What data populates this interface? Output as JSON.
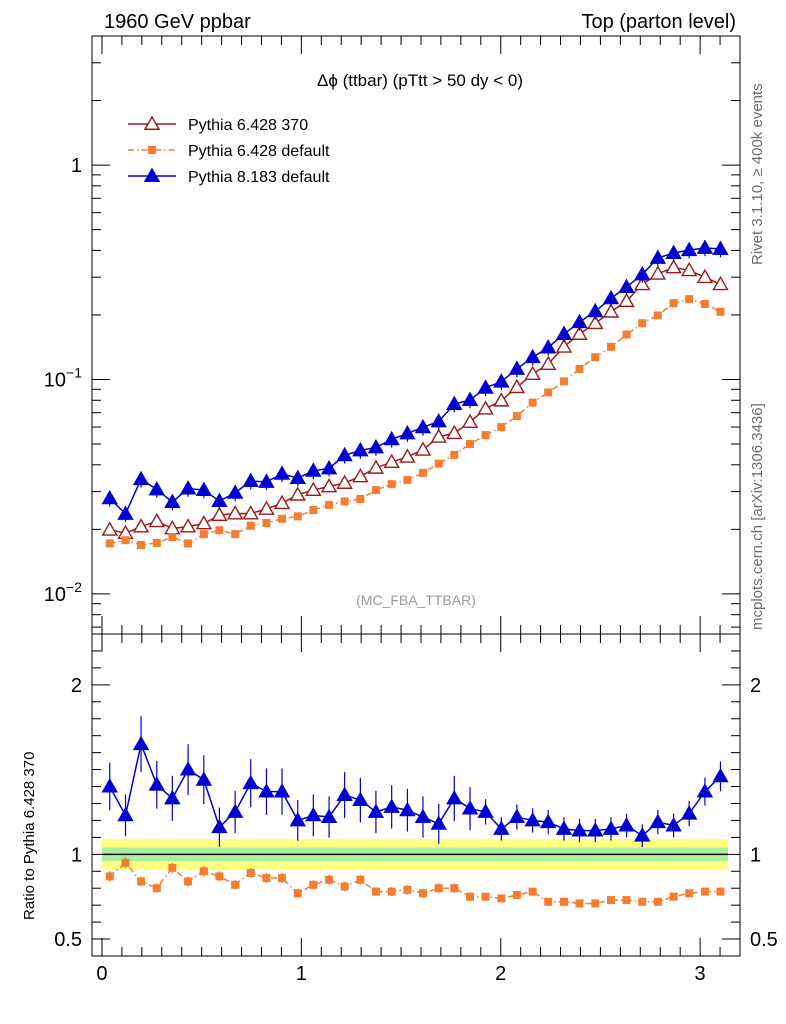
{
  "header": {
    "left": "1960 GeV ppbar",
    "right": "Top (parton level)"
  },
  "side_labels": {
    "rivet": "Rivet 3.1.10, ≥ 400k events",
    "mcplots": "mcplots.cern.ch [arXiv:1306.3436]"
  },
  "chart_data": [
    {
      "type": "line",
      "title": "Δϕ (ttbar) (pTtt > 50 dy < 0)",
      "watermark": "(MC_FBA_TTBAR)",
      "xlabel": "",
      "ylabel": "",
      "yscale": "log",
      "xlim": [
        -0.05,
        3.2
      ],
      "ylim": [
        0.0065,
        4.0
      ],
      "y_ticks": [
        {
          "value": 1,
          "label": "1"
        },
        {
          "value": 0.1,
          "label": "10",
          "exp": "−1"
        },
        {
          "value": 0.01,
          "label": "10",
          "exp": "−2"
        }
      ],
      "legend_position": "top-left",
      "grid": false,
      "x": [
        0.039,
        0.118,
        0.196,
        0.275,
        0.353,
        0.432,
        0.511,
        0.589,
        0.668,
        0.746,
        0.825,
        0.903,
        0.982,
        1.06,
        1.139,
        1.217,
        1.296,
        1.374,
        1.453,
        1.532,
        1.61,
        1.689,
        1.767,
        1.846,
        1.924,
        2.003,
        2.081,
        2.16,
        2.238,
        2.317,
        2.395,
        2.474,
        2.553,
        2.631,
        2.71,
        2.788,
        2.867,
        2.945,
        3.024,
        3.102
      ],
      "series": [
        {
          "name": "Pythia 6.428 370",
          "color": "#9b1b1b",
          "marker": "open-triangle",
          "line": "solid",
          "values": [
            0.0199,
            0.0192,
            0.0206,
            0.0218,
            0.0202,
            0.0206,
            0.0213,
            0.0233,
            0.0237,
            0.0237,
            0.0249,
            0.0265,
            0.029,
            0.0305,
            0.0317,
            0.0329,
            0.0353,
            0.0387,
            0.0412,
            0.0436,
            0.047,
            0.054,
            0.0562,
            0.0633,
            0.0731,
            0.0797,
            0.092,
            0.106,
            0.118,
            0.142,
            0.163,
            0.183,
            0.207,
            0.232,
            0.278,
            0.311,
            0.333,
            0.323,
            0.3,
            0.278
          ]
        },
        {
          "name": "Pythia 6.428 default",
          "color": "#f47d30",
          "marker": "filled-square",
          "line": "dash-dot",
          "values": [
            0.0172,
            0.0178,
            0.0169,
            0.0173,
            0.0184,
            0.0172,
            0.019,
            0.0198,
            0.019,
            0.0208,
            0.0214,
            0.0224,
            0.023,
            0.0246,
            0.026,
            0.027,
            0.0277,
            0.0305,
            0.0325,
            0.034,
            0.0367,
            0.0405,
            0.0445,
            0.05,
            0.055,
            0.06,
            0.0675,
            0.078,
            0.087,
            0.098,
            0.112,
            0.127,
            0.142,
            0.162,
            0.183,
            0.199,
            0.227,
            0.237,
            0.225,
            0.207
          ]
        },
        {
          "name": "Pythia 8.183 default",
          "color": "#0000d0",
          "marker": "filled-triangle",
          "line": "solid",
          "values": [
            0.0279,
            0.0236,
            0.0343,
            0.0307,
            0.0268,
            0.031,
            0.0305,
            0.0271,
            0.0296,
            0.0336,
            0.0333,
            0.0363,
            0.0347,
            0.0375,
            0.0385,
            0.0443,
            0.0467,
            0.0482,
            0.0526,
            0.056,
            0.0598,
            0.0637,
            0.0768,
            0.0802,
            0.0915,
            0.0977,
            0.112,
            0.127,
            0.141,
            0.163,
            0.185,
            0.208,
            0.239,
            0.27,
            0.309,
            0.369,
            0.389,
            0.401,
            0.411,
            0.406
          ]
        }
      ]
    },
    {
      "type": "line",
      "ylabel": "Ratio to Pythia 6.428 370",
      "xlabel": "",
      "xlim": [
        -0.05,
        3.2
      ],
      "ylim": [
        0.4,
        2.3
      ],
      "y_ticks": [
        {
          "value": 2,
          "label": "2"
        },
        {
          "value": 1,
          "label": "1"
        },
        {
          "value": 0.5,
          "label": "0.5"
        }
      ],
      "x_ticks": [
        {
          "value": 0,
          "label": "0"
        },
        {
          "value": 1,
          "label": "1"
        },
        {
          "value": 2,
          "label": "2"
        },
        {
          "value": 3,
          "label": "3"
        }
      ],
      "reference_band_color": "#ffff80",
      "reference_band_inner_color": "#a8f0a0",
      "series": [
        {
          "name": "Pythia 6.428 default",
          "color": "#f47d30",
          "values": [
            0.87,
            0.95,
            0.84,
            0.8,
            0.92,
            0.84,
            0.9,
            0.87,
            0.82,
            0.89,
            0.86,
            0.86,
            0.77,
            0.82,
            0.85,
            0.81,
            0.85,
            0.78,
            0.78,
            0.79,
            0.77,
            0.8,
            0.8,
            0.75,
            0.75,
            0.74,
            0.76,
            0.78,
            0.72,
            0.72,
            0.71,
            0.71,
            0.73,
            0.73,
            0.72,
            0.72,
            0.75,
            0.77,
            0.78,
            0.78
          ]
        },
        {
          "name": "Pythia 8.183 default",
          "color": "#0000d0",
          "values": [
            1.4,
            1.23,
            1.65,
            1.41,
            1.33,
            1.5,
            1.44,
            1.16,
            1.25,
            1.42,
            1.37,
            1.37,
            1.2,
            1.23,
            1.22,
            1.35,
            1.32,
            1.25,
            1.28,
            1.26,
            1.22,
            1.18,
            1.33,
            1.27,
            1.25,
            1.15,
            1.22,
            1.2,
            1.19,
            1.15,
            1.14,
            1.14,
            1.15,
            1.17,
            1.11,
            1.19,
            1.17,
            1.24,
            1.37,
            1.46
          ]
        }
      ]
    }
  ]
}
